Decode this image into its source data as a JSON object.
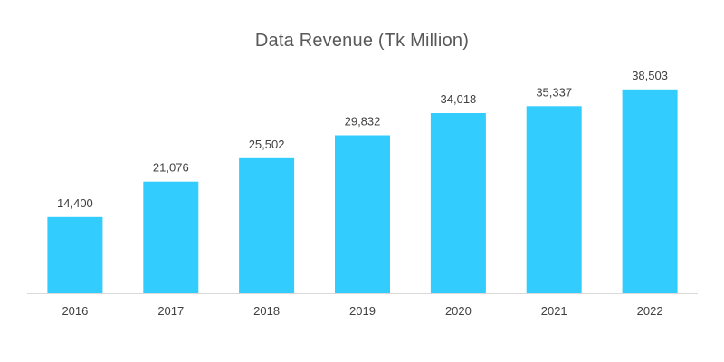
{
  "chart_data": {
    "type": "bar",
    "title": "Data Revenue (Tk Million)",
    "xlabel": "",
    "ylabel": "",
    "categories": [
      "2016",
      "2017",
      "2018",
      "2019",
      "2020",
      "2021",
      "2022"
    ],
    "values": [
      14400,
      21076,
      25502,
      29832,
      34018,
      35337,
      38503
    ],
    "data_labels": [
      "14,400",
      "21,076",
      "25,502",
      "29,832",
      "34,018",
      "35,337",
      "38,503"
    ],
    "ylim": [
      0,
      40000
    ],
    "grid": false,
    "legend": "none",
    "bar_color": "#33ccff"
  }
}
